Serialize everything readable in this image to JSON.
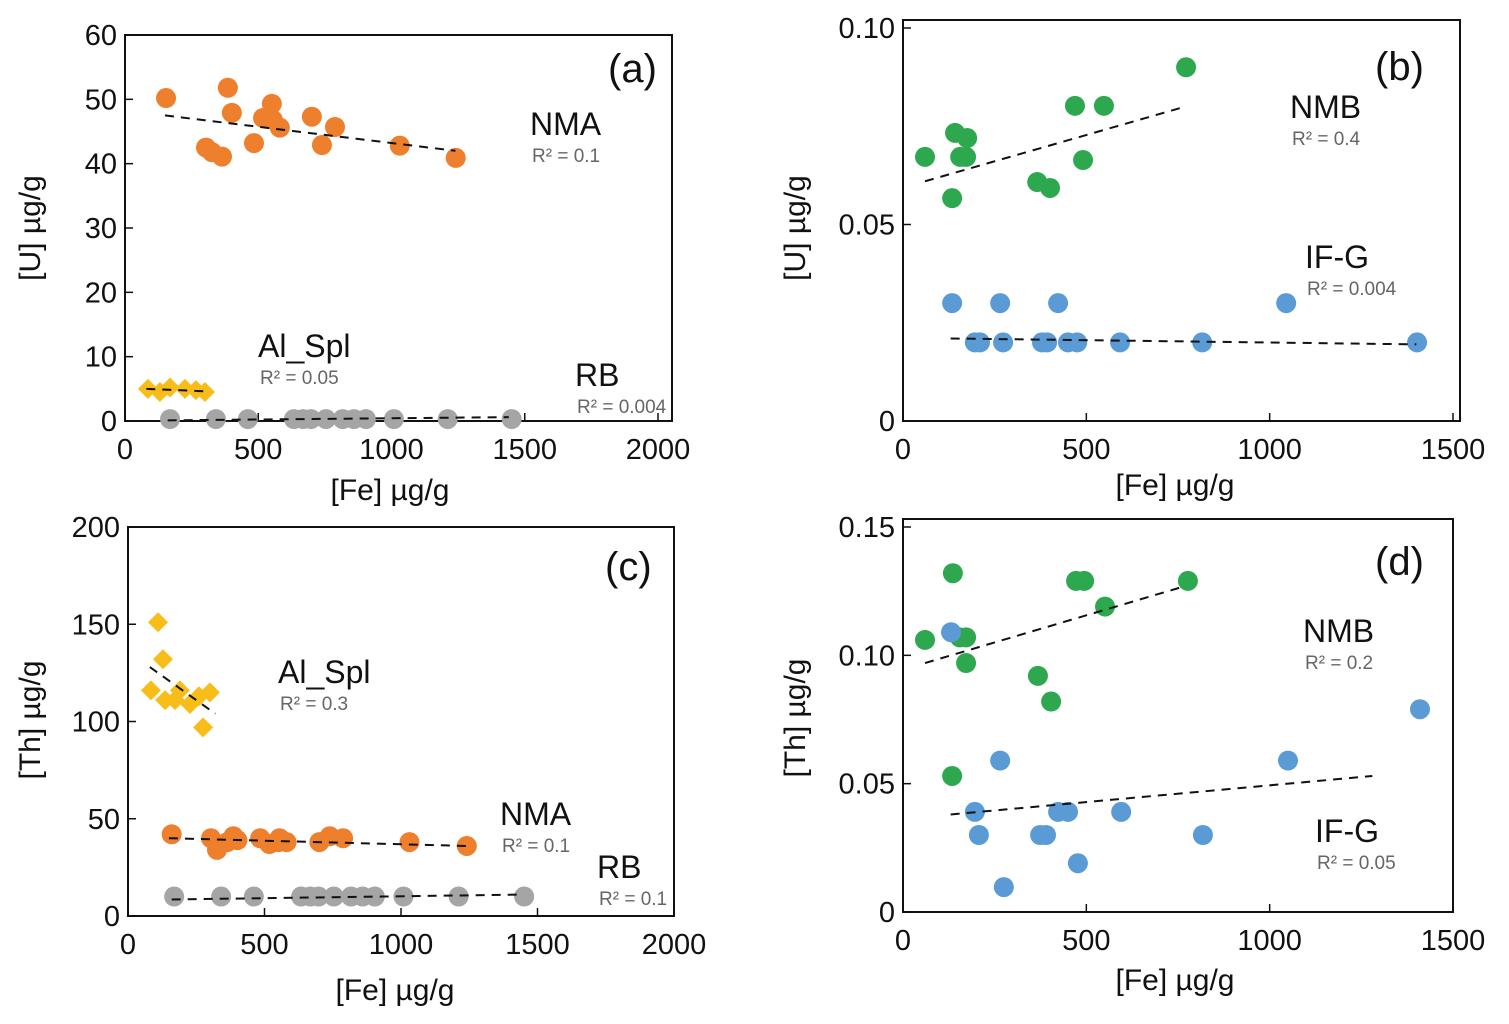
{
  "colors": {
    "NMA": "#ee7f2d",
    "Al_Spl": "#f9bd1a",
    "RB": "#a5a5a5",
    "NMB": "#2ea84f",
    "IF-G": "#5a9bd5"
  },
  "chart_data": [
    {
      "type": "scatter",
      "panel_label": "(a)",
      "xlabel": "[Fe] µg/g",
      "ylabel": "[U] µg/g",
      "xlim": [
        0,
        2000
      ],
      "ylim": [
        0,
        60
      ],
      "xticks": [
        "0",
        "500",
        "1000",
        "1500",
        "2000"
      ],
      "yticks": [
        "0",
        "10",
        "20",
        "30",
        "40",
        "50",
        "60"
      ],
      "series": [
        {
          "name": "NMA",
          "r2": "R² = 0.1",
          "marker": "circle",
          "x": [
            154,
            304,
            326,
            364,
            386,
            401,
            484,
            518,
            551,
            555,
            581,
            701,
            739,
            788,
            1031,
            1241
          ],
          "y": [
            50.2,
            42.5,
            41.8,
            41.1,
            51.8,
            47.9,
            43.2,
            47.1,
            49.3,
            46.8,
            45.6,
            47.3,
            42.9,
            45.7,
            42.8,
            40.9
          ],
          "trend": [
            [
              150,
              47.5
            ],
            [
              1240,
              42
            ]
          ]
        },
        {
          "name": "Al_Spl",
          "r2": "R² = 0.05",
          "marker": "diamond",
          "x": [
            86,
            131,
            169,
            225,
            266,
            300
          ],
          "y": [
            5,
            4.5,
            5.2,
            5,
            4.8,
            4.5
          ],
          "trend": [
            [
              80,
              5
            ],
            [
              310,
              4.6
            ]
          ]
        },
        {
          "name": "RB",
          "r2": "R² = 0.004",
          "marker": "circle",
          "x": [
            169,
            341,
            461,
            634,
            668,
            698,
            754,
            817,
            859,
            904,
            1009,
            1211,
            1451
          ],
          "y": [
            0.3,
            0.3,
            0.3,
            0.3,
            0.3,
            0.3,
            0.3,
            0.3,
            0.3,
            0.3,
            0.3,
            0.3,
            0.3
          ],
          "trend": [
            [
              160,
              0.1
            ],
            [
              1440,
              0.6
            ]
          ]
        }
      ]
    },
    {
      "type": "scatter",
      "panel_label": "(b)",
      "xlabel": "[Fe] µg/g",
      "ylabel": "[U] µg/g",
      "xlim": [
        0,
        1500
      ],
      "ylim": [
        0,
        0.1
      ],
      "xticks": [
        "0",
        "500",
        "1000",
        "1500"
      ],
      "yticks": [
        "0",
        "0.05",
        "0.10"
      ],
      "series": [
        {
          "name": "NMB",
          "r2": "R² = 0.4",
          "marker": "circle",
          "x": [
            60,
            142,
            175,
            156,
            172,
            134,
            366,
            401,
            469,
            491,
            548,
            772
          ],
          "y": [
            0.0672,
            0.0733,
            0.072,
            0.0672,
            0.0672,
            0.0567,
            0.0608,
            0.0593,
            0.0802,
            0.0664,
            0.0802,
            0.09
          ],
          "trend": [
            [
              60,
              0.061
            ],
            [
              770,
              0.08
            ]
          ]
        },
        {
          "name": "IF-G",
          "r2": "R² = 0.004",
          "marker": "circle",
          "x": [
            134,
            265,
            423,
            1045,
            196,
            210,
            273,
            379,
            393,
            450,
            475,
            592,
            816,
            1402
          ],
          "y": [
            0.03,
            0.03,
            0.03,
            0.03,
            0.02,
            0.02,
            0.02,
            0.02,
            0.02,
            0.02,
            0.02,
            0.02,
            0.02,
            0.02
          ],
          "trend": [
            [
              130,
              0.021
            ],
            [
              1400,
              0.0195
            ]
          ]
        }
      ]
    },
    {
      "type": "scatter",
      "panel_label": "(c)",
      "xlabel": "[Fe] µg/g",
      "ylabel": "[Th] µg/g",
      "xlim": [
        0,
        2000
      ],
      "ylim": [
        0,
        200
      ],
      "xticks": [
        "0",
        "500",
        "1000",
        "1500",
        "2000"
      ],
      "yticks": [
        "0",
        "50",
        "100",
        "150",
        "200"
      ],
      "series": [
        {
          "name": "Al_Spl",
          "r2": "R² = 0.3",
          "marker": "diamond",
          "x": [
            84,
            110,
            128,
            136,
            172,
            190,
            227,
            260,
            275,
            300
          ],
          "y": [
            116,
            151,
            132,
            111,
            111,
            116,
            109,
            113,
            97,
            115
          ],
          "trend": [
            [
              80,
              128
            ],
            [
              320,
              104
            ]
          ]
        },
        {
          "name": "NMA",
          "r2": "R² = 0.1",
          "marker": "circle",
          "x": [
            160,
            304,
            326,
            364,
            386,
            401,
            484,
            518,
            551,
            555,
            581,
            701,
            739,
            788,
            1031,
            1241
          ],
          "y": [
            42,
            40,
            34,
            38,
            41,
            39,
            40,
            37,
            38,
            40,
            38,
            38,
            41,
            40,
            38,
            36
          ],
          "trend": [
            [
              150,
              40
            ],
            [
              1240,
              36
            ]
          ]
        },
        {
          "name": "RB",
          "r2": "R² = 0.1",
          "marker": "circle",
          "x": [
            169,
            341,
            461,
            634,
            668,
            698,
            754,
            817,
            859,
            904,
            1009,
            1211,
            1451
          ],
          "y": [
            10,
            10,
            10,
            10,
            10,
            10,
            10,
            10,
            10,
            10,
            10,
            10,
            10
          ],
          "trend": [
            [
              160,
              8.5
            ],
            [
              1440,
              11
            ]
          ]
        }
      ]
    },
    {
      "type": "scatter",
      "panel_label": "(d)",
      "xlabel": "[Fe] µg/g",
      "ylabel": "[Th] µg/g",
      "xlim": [
        0,
        1500
      ],
      "ylim": [
        0,
        0.15
      ],
      "xticks": [
        "0",
        "500",
        "1000",
        "1500"
      ],
      "yticks": [
        "0",
        "0.05",
        "0.10",
        "0.15"
      ],
      "series": [
        {
          "name": "NMB",
          "r2": "R² = 0.2",
          "marker": "circle",
          "x": [
            60,
            136,
            155,
            172,
            172,
            368,
            404,
            134,
            472,
            494,
            551,
            777
          ],
          "y": [
            0.106,
            0.132,
            0.107,
            0.107,
            0.097,
            0.092,
            0.082,
            0.053,
            0.129,
            0.129,
            0.119,
            0.129
          ],
          "trend": [
            [
              60,
              0.097
            ],
            [
              770,
              0.127
            ]
          ]
        },
        {
          "name": "IF-G",
          "r2": "R² = 0.05",
          "marker": "circle",
          "x": [
            131,
            265,
            196,
            207,
            275,
            374,
            390,
            423,
            450,
            477,
            595,
            818,
            1050,
            1410
          ],
          "y": [
            0.109,
            0.059,
            0.039,
            0.03,
            0.0097,
            0.03,
            0.03,
            0.039,
            0.039,
            0.019,
            0.039,
            0.03,
            0.059,
            0.079
          ],
          "trend": [
            [
              130,
              0.038
            ],
            [
              1280,
              0.053
            ]
          ]
        }
      ]
    }
  ]
}
